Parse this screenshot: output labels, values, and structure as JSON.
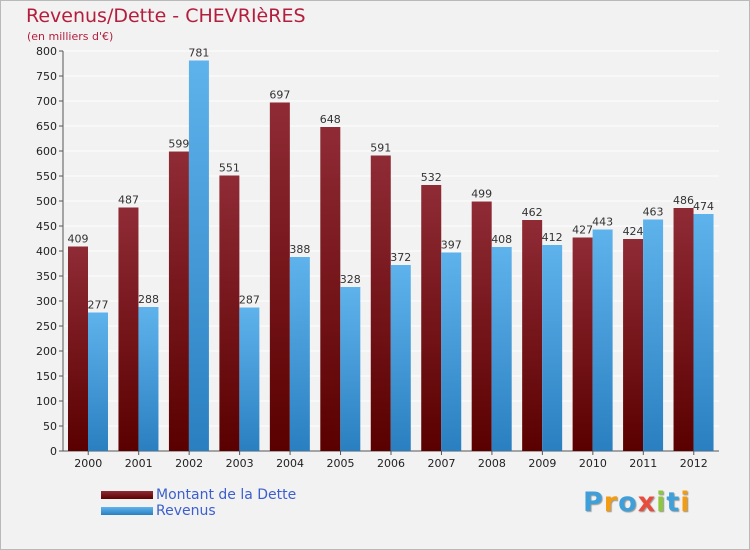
{
  "header": {
    "title": "Revenus/Dette - CHEVRIèRES",
    "subtitle": "(en milliers d'€)"
  },
  "legend": {
    "debt_label": "Montant de la Dette",
    "revenue_label": "Revenus"
  },
  "logo": {
    "letters": [
      "P",
      "r",
      "o",
      "x",
      "i",
      "t",
      "i"
    ],
    "colors": [
      "#3f9fd8",
      "#f39c12",
      "#3f9fd8",
      "#e74c3c",
      "#8dc63f",
      "#3f9fd8",
      "#f39c12"
    ]
  },
  "colors": {
    "debt": "#7b1e24",
    "revenue": "#4aa3e0",
    "title": "#b41e3c"
  },
  "chart_data": {
    "type": "bar",
    "title": "Revenus/Dette - CHEVRIèRES",
    "ylabel": "(en milliers d'€)",
    "xlabel": "",
    "categories": [
      "2000",
      "2001",
      "2002",
      "2003",
      "2004",
      "2005",
      "2006",
      "2007",
      "2008",
      "2009",
      "2010",
      "2011",
      "2012"
    ],
    "series": [
      {
        "name": "Montant de la Dette",
        "values": [
          409,
          487,
          599,
          551,
          697,
          648,
          591,
          532,
          499,
          462,
          427,
          424,
          486
        ]
      },
      {
        "name": "Revenus",
        "values": [
          277,
          288,
          781,
          287,
          388,
          328,
          372,
          397,
          408,
          412,
          443,
          463,
          474
        ]
      }
    ],
    "ylim": [
      0,
      800
    ],
    "yticks": [
      0,
      50,
      100,
      150,
      200,
      250,
      300,
      350,
      400,
      450,
      500,
      550,
      600,
      650,
      700,
      750,
      800
    ],
    "grid": true,
    "legend": "bottom-left"
  }
}
